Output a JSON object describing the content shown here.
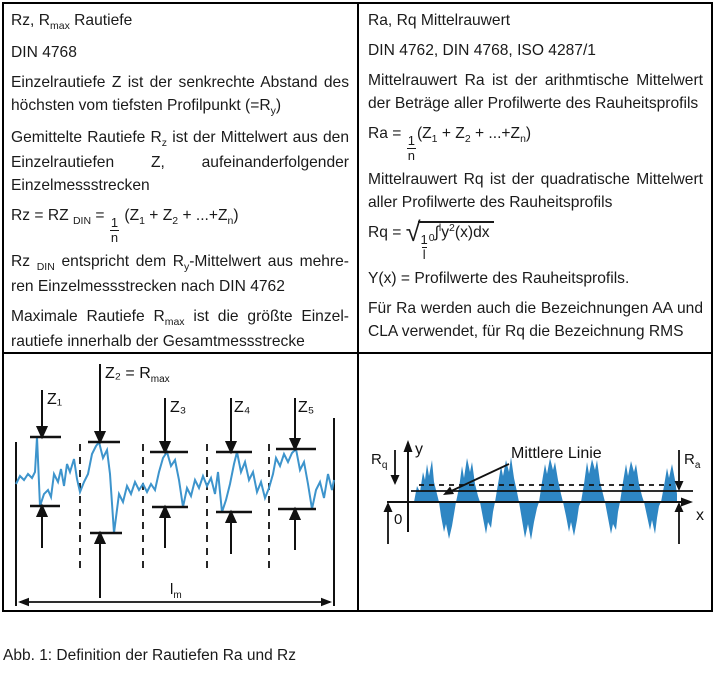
{
  "table": {
    "top_left": {
      "paragraphs": [
        {
          "runs": [
            {
              "t": "Rz, R"
            },
            {
              "t": "max",
              "style": "sub"
            },
            {
              "t": " Rautiefe"
            }
          ]
        },
        {
          "runs": [
            {
              "t": "DIN 4768"
            }
          ]
        },
        {
          "runs": [
            {
              "t": "Einzelrautiefe Z ist der senkrechte Abstand des höchsten vom tiefsten Profilpunkt (=R"
            },
            {
              "t": "y",
              "style": "sub"
            },
            {
              "t": ")"
            }
          ]
        },
        {
          "runs": [
            {
              "t": "Gemittelte Rautiefe R"
            },
            {
              "t": "z",
              "style": "sub"
            },
            {
              "t": " ist der Mittelwert aus den Einzelrautiefen Z, aufeinanderfolgender Einzelmessstrecken"
            }
          ]
        },
        {
          "runs": [
            {
              "t": "Rz = RZ "
            },
            {
              "t": "DIN",
              "style": "sub"
            },
            {
              "t": " = "
            },
            {
              "frac": [
                "1",
                "n"
              ]
            },
            {
              "t": " (Z"
            },
            {
              "t": "1",
              "style": "sub"
            },
            {
              "t": " + Z"
            },
            {
              "t": "2",
              "style": "sub"
            },
            {
              "t": " + ...+Z"
            },
            {
              "t": "n",
              "style": "sub"
            },
            {
              "t": ")"
            }
          ]
        },
        {
          "runs": [
            {
              "t": "Rz "
            },
            {
              "t": "DIN",
              "style": "sub"
            },
            {
              "t": " entspricht dem R"
            },
            {
              "t": "y",
              "style": "sub"
            },
            {
              "t": "-Mittelwert aus mehre­ren Einzelmessstrecken nach DIN 4762"
            }
          ]
        },
        {
          "runs": [
            {
              "t": "Maximale Rautiefe R"
            },
            {
              "t": "max",
              "style": "sub"
            },
            {
              "t": " ist die größte Einzel­rautiefe innerhalb der Gesamtmessstrecke"
            }
          ]
        }
      ]
    },
    "top_right": {
      "paragraphs": [
        {
          "runs": [
            {
              "t": "Ra, Rq Mittelrauwert"
            }
          ]
        },
        {
          "runs": [
            {
              "t": "DIN 4762, DIN 4768, ISO 4287/1"
            }
          ]
        },
        {
          "runs": [
            {
              "t": "Mittelrauwert Ra ist der arithmtische Mittel­wert der Beträge aller Profilwerte des Rau­heitsprofils"
            }
          ]
        },
        {
          "runs": [
            {
              "t": "Ra = "
            },
            {
              "frac": [
                "1",
                "n"
              ]
            },
            {
              "t": "(Z"
            },
            {
              "t": "1",
              "style": "sub"
            },
            {
              "t": " + Z"
            },
            {
              "t": "2",
              "style": "sub"
            },
            {
              "t": " + ...+Z"
            },
            {
              "t": "n",
              "style": "sub"
            },
            {
              "t": ")"
            }
          ]
        },
        {
          "runs": [
            {
              "t": "Mittelrauwert Rq ist der quadratische Mittel­wert aller Profilwerte des Rauheitsprofils"
            }
          ]
        },
        {
          "runs": [
            {
              "t": "Rq = "
            },
            {
              "t": "√",
              "style": "sqrt"
            },
            {
              "style": "overline",
              "runs": [
                {
                  "frac": [
                    "1",
                    "l"
                  ]
                },
                {
                  "t": "0",
                  "style": "sub"
                },
                {
                  "t": "∫"
                },
                {
                  "t": "l",
                  "style": "sup"
                },
                {
                  "t": "y"
                },
                {
                  "t": "2",
                  "style": "sup"
                },
                {
                  "t": "(x)dx"
                }
              ]
            }
          ]
        },
        {
          "runs": [
            {
              "t": "Y(x) = Profilwerte des Rauheitsprofils."
            }
          ]
        },
        {
          "runs": [
            {
              "t": "Für Ra werden auch die Bezeichnungen AA und CLA verwendet, für Rq die Bezeichnung RMS"
            }
          ]
        }
      ]
    }
  },
  "figure_left": {
    "label_z1": "Z₁",
    "label_z2_base": "Z₂ = R",
    "label_z2_sub": "max",
    "label_z3": "Z₃",
    "label_z4": "Z₄",
    "label_z5": "Z₅",
    "length_label_base": "l",
    "length_label_sub": "m"
  },
  "figure_right": {
    "label_rq_base": "R",
    "label_rq_sub": "q",
    "label_ra_base": "R",
    "label_ra_sub": "a",
    "label_y_axis": "y",
    "label_x_axis": "x",
    "label_origin": "0",
    "label_mean_line": "Mittlere Linie"
  },
  "caption": "Abb. 1: Definition der Rautiefen Ra und Rz",
  "colors": {
    "profile_blue": "#3d94cc",
    "wave_blue": "#2e86c3",
    "ink": "#111111"
  }
}
